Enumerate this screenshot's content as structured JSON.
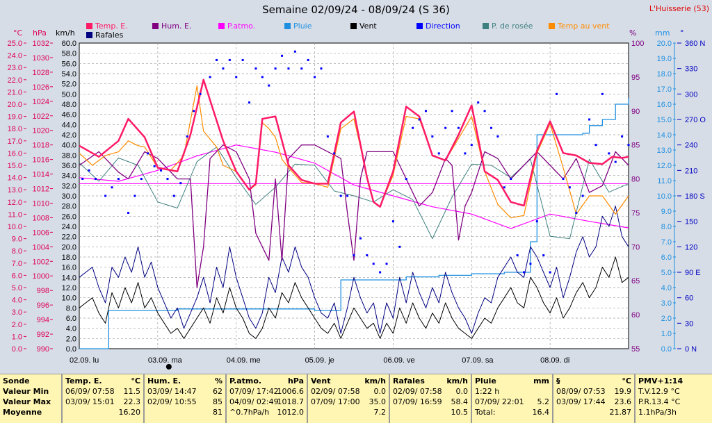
{
  "title": "Semaine 02/09/24 - 08/09/24 (S 36)",
  "station": "L'Huisserie (53)",
  "legend": [
    {
      "label": "Temp. E.",
      "color": "#ff1a66"
    },
    {
      "label": "Hum. E.",
      "color": "#800080"
    },
    {
      "label": "P.atmo.",
      "color": "#ff00ff"
    },
    {
      "label": "Pluie",
      "color": "#1e8fe0"
    },
    {
      "label": "Vent",
      "color": "#000000"
    },
    {
      "label": "Direction",
      "color": "#0000ff"
    },
    {
      "label": "P. de rosée",
      "color": "#3f7f7f"
    },
    {
      "label": "Temp au vent",
      "color": "#ff8c00"
    },
    {
      "label": "Rafales",
      "color": "#000080"
    }
  ],
  "axes": {
    "temp": {
      "unit": "°C",
      "min": 0,
      "max": 25,
      "step": 0.5,
      "color": "#e0005a"
    },
    "pressure": {
      "unit": "hPa",
      "min": 990,
      "max": 1032,
      "step": 2,
      "color": "#e0005a"
    },
    "wind": {
      "unit": "km/h",
      "min": 0,
      "max": 60,
      "step": 2,
      "color": "#000000"
    },
    "humidity": {
      "unit": "%",
      "min": 55,
      "max": 100,
      "step": 5,
      "color": "#800080"
    },
    "rain": {
      "unit": "mm",
      "min": 0,
      "max": 20,
      "step": 1,
      "color": "#1e8fe0"
    },
    "direction": {
      "unit": "°",
      "ticks": [
        "0 N",
        "30",
        "60",
        "90 E",
        "120",
        "150",
        "180 S",
        "210",
        "240",
        "270 O",
        "300",
        "330",
        "360 N"
      ],
      "color": "#0000c0"
    }
  },
  "days": [
    "02.09. lu",
    "03.09. ma",
    "04.09. me",
    "05.09. je",
    "06.09. ve",
    "07.09. sa",
    "08.09. di"
  ],
  "chart_data": {
    "type": "line",
    "x_unit": "hour of week (0 = 02/09 00:00)",
    "series": [
      {
        "name": "Temp. E.",
        "axis": "temp",
        "x": [
          0,
          6,
          12,
          15,
          20,
          24,
          30,
          34,
          38,
          44,
          48,
          52,
          54,
          56,
          60,
          64,
          68,
          72,
          76,
          80,
          84,
          88,
          90,
          92,
          96,
          100,
          104,
          108,
          112,
          116,
          120,
          124,
          128,
          132,
          136,
          140,
          144,
          148,
          152,
          156,
          160,
          163,
          166,
          168
        ],
        "y": [
          16.6,
          15.7,
          17.0,
          18.8,
          17.3,
          14.8,
          14.5,
          17.5,
          22.0,
          17.0,
          14.5,
          13.0,
          13.5,
          18.8,
          19.0,
          15.0,
          13.8,
          13.5,
          13.5,
          18.5,
          19.4,
          14.0,
          12.0,
          11.6,
          14.5,
          19.8,
          19.0,
          15.8,
          15.4,
          17.5,
          19.9,
          14.5,
          13.8,
          12.0,
          11.7,
          16.2,
          18.6,
          16.0,
          15.8,
          15.2,
          15.1,
          15.7,
          15.6,
          15.7
        ]
      },
      {
        "name": "Hum. E.",
        "axis": "humidity",
        "x": [
          0,
          6,
          12,
          15,
          20,
          24,
          30,
          34,
          36,
          38,
          40,
          44,
          48,
          52,
          54,
          56,
          58,
          60,
          62,
          64,
          68,
          72,
          76,
          80,
          82,
          84,
          86,
          88,
          92,
          96,
          100,
          104,
          108,
          112,
          114,
          116,
          118,
          120,
          124,
          128,
          132,
          136,
          140,
          144,
          148,
          152,
          156,
          160,
          164,
          168
        ],
        "y": [
          82,
          84,
          81,
          80,
          84,
          83,
          80,
          80,
          64,
          70,
          83,
          85,
          84,
          80,
          72,
          70,
          68,
          80,
          68,
          83,
          85,
          85,
          84,
          83,
          75,
          68,
          80,
          84,
          84,
          84,
          80,
          76,
          78,
          83,
          82,
          71,
          76,
          78,
          84,
          83,
          80,
          82,
          84,
          82,
          80,
          83,
          78,
          79,
          84,
          82
        ]
      },
      {
        "name": "P.atmo.",
        "axis": "pressure",
        "x": [
          0,
          12,
          24,
          36,
          48,
          60,
          72,
          84,
          96,
          108,
          120,
          132,
          144,
          156,
          168
        ],
        "y": [
          1013.5,
          1013.0,
          1014.5,
          1016.5,
          1018.0,
          1017.0,
          1015.5,
          1012.5,
          1011.0,
          1009.5,
          1008.5,
          1006.5,
          1008.5,
          1007.5,
          1006.6
        ]
      },
      {
        "name": "Pluie",
        "axis": "rain",
        "x": [
          0,
          7,
          9,
          30,
          60,
          72,
          79,
          80,
          100,
          110,
          120,
          130,
          136,
          138,
          140,
          144,
          148,
          154,
          156,
          160,
          164,
          168
        ],
        "y": [
          0,
          0,
          2.5,
          2.6,
          2.6,
          2.5,
          2.5,
          4.5,
          4.7,
          4.8,
          4.9,
          5.0,
          5.0,
          7.0,
          14.0,
          14.0,
          14.0,
          14.1,
          14.6,
          15.0,
          16.0,
          16.4
        ]
      },
      {
        "name": "Vent",
        "axis": "wind",
        "x": [
          0,
          4,
          6,
          8,
          10,
          12,
          14,
          16,
          18,
          20,
          22,
          24,
          26,
          28,
          30,
          32,
          34,
          36,
          38,
          40,
          42,
          44,
          46,
          48,
          50,
          52,
          54,
          56,
          58,
          60,
          62,
          64,
          66,
          68,
          70,
          72,
          74,
          76,
          78,
          80,
          82,
          84,
          86,
          88,
          90,
          92,
          94,
          96,
          98,
          100,
          102,
          104,
          106,
          108,
          110,
          112,
          114,
          116,
          118,
          120,
          122,
          124,
          126,
          128,
          130,
          132,
          134,
          136,
          138,
          140,
          142,
          144,
          146,
          148,
          150,
          152,
          154,
          156,
          158,
          160,
          162,
          164,
          166,
          168
        ],
        "y": [
          8,
          10,
          7,
          5,
          11,
          8,
          12,
          9,
          13,
          8,
          10,
          7,
          5,
          3,
          4,
          2,
          4,
          6,
          8,
          5,
          10,
          7,
          12,
          8,
          6,
          3,
          2,
          4,
          8,
          6,
          11,
          9,
          13,
          10,
          8,
          6,
          4,
          3,
          5,
          2,
          5,
          8,
          6,
          4,
          5,
          2,
          5,
          3,
          8,
          5,
          9,
          6,
          4,
          7,
          5,
          9,
          6,
          4,
          3,
          2,
          4,
          6,
          5,
          8,
          10,
          12,
          9,
          8,
          14,
          12,
          9,
          7,
          10,
          6,
          8,
          11,
          13,
          10,
          12,
          16,
          14,
          18,
          13,
          14
        ]
      },
      {
        "name": "Rafales",
        "axis": "wind",
        "x": [
          0,
          4,
          6,
          8,
          10,
          12,
          14,
          16,
          18,
          20,
          22,
          24,
          26,
          28,
          30,
          32,
          34,
          36,
          38,
          40,
          42,
          44,
          46,
          48,
          50,
          52,
          54,
          56,
          58,
          60,
          62,
          64,
          66,
          68,
          70,
          72,
          74,
          76,
          78,
          80,
          82,
          84,
          86,
          88,
          90,
          92,
          94,
          96,
          98,
          100,
          102,
          104,
          106,
          108,
          110,
          112,
          114,
          116,
          118,
          120,
          122,
          124,
          126,
          128,
          130,
          132,
          134,
          136,
          138,
          140,
          142,
          144,
          146,
          148,
          150,
          152,
          154,
          156,
          158,
          160,
          162,
          164,
          166,
          168
        ],
        "y": [
          14,
          16,
          12,
          9,
          16,
          14,
          18,
          15,
          20,
          14,
          17,
          12,
          9,
          6,
          8,
          4,
          7,
          10,
          14,
          9,
          16,
          12,
          20,
          14,
          10,
          6,
          4,
          7,
          14,
          11,
          18,
          15,
          20,
          16,
          14,
          10,
          7,
          6,
          9,
          3,
          8,
          14,
          10,
          7,
          9,
          3,
          9,
          6,
          14,
          9,
          15,
          11,
          8,
          12,
          9,
          15,
          11,
          8,
          6,
          3,
          7,
          10,
          9,
          14,
          16,
          18,
          15,
          14,
          20,
          18,
          15,
          12,
          16,
          10,
          14,
          19,
          22,
          18,
          20,
          26,
          24,
          28,
          22,
          20
        ]
      },
      {
        "name": "P. de rosée",
        "axis": "temp",
        "x": [
          0,
          6,
          12,
          18,
          24,
          30,
          36,
          42,
          48,
          54,
          60,
          66,
          72,
          78,
          84,
          90,
          96,
          102,
          108,
          114,
          120,
          126,
          132,
          138,
          144,
          150,
          156,
          162,
          168
        ],
        "y": [
          15.2,
          13.7,
          15.6,
          15.0,
          12.0,
          11.5,
          15.3,
          16.5,
          14.0,
          11.8,
          13.2,
          15.1,
          15.0,
          12.9,
          12.5,
          12.0,
          13.0,
          12.2,
          9.0,
          12.4,
          15.1,
          15.0,
          14.0,
          15.5,
          9.2,
          9.0,
          15.5,
          12.8,
          13.5
        ]
      },
      {
        "name": "Temp au vent",
        "axis": "temp",
        "x": [
          0,
          4,
          8,
          12,
          15,
          18,
          20,
          24,
          28,
          32,
          36,
          38,
          42,
          44,
          48,
          52,
          54,
          56,
          58,
          60,
          62,
          64,
          68,
          72,
          76,
          80,
          84,
          86,
          88,
          90,
          92,
          96,
          100,
          104,
          108,
          112,
          116,
          120,
          124,
          128,
          132,
          136,
          140,
          144,
          148,
          152,
          156,
          160,
          164,
          168
        ],
        "y": [
          16.0,
          15.0,
          15.8,
          16.1,
          17.0,
          16.6,
          16.5,
          14.8,
          14.6,
          15.8,
          21.5,
          17.8,
          16.5,
          15.0,
          14.5,
          13.0,
          13.4,
          18.5,
          18.0,
          17.3,
          15.5,
          14.8,
          13.6,
          13.5,
          13.2,
          18.0,
          18.8,
          16.5,
          14.0,
          12.0,
          11.6,
          14.2,
          19.0,
          18.8,
          15.8,
          15.4,
          17.2,
          19.0,
          14.5,
          11.8,
          10.7,
          10.9,
          16.0,
          18.4,
          14.8,
          11.0,
          12.5,
          12.5,
          11.0,
          12.5
        ]
      },
      {
        "name": "Direction",
        "axis": "direction",
        "x": [
          1,
          3,
          5,
          8,
          10,
          12,
          15,
          17,
          19,
          21,
          23,
          25,
          27,
          29,
          31,
          33,
          35,
          37,
          40,
          42,
          44,
          46,
          48,
          50,
          52,
          54,
          56,
          58,
          60,
          62,
          64,
          66,
          68,
          70,
          72,
          74,
          76,
          78,
          80,
          82,
          84,
          86,
          88,
          90,
          92,
          94,
          96,
          98,
          100,
          102,
          104,
          106,
          108,
          110,
          112,
          114,
          116,
          118,
          120,
          122,
          124,
          126,
          128,
          130,
          132,
          134,
          136,
          138,
          140,
          142,
          144,
          146,
          148,
          150,
          152,
          154,
          156,
          158,
          160,
          162,
          164,
          166,
          168
        ],
        "y": [
          200,
          210,
          200,
          180,
          190,
          200,
          160,
          180,
          200,
          230,
          215,
          210,
          200,
          180,
          195,
          250,
          280,
          300,
          320,
          340,
          330,
          340,
          320,
          340,
          290,
          330,
          320,
          310,
          330,
          345,
          330,
          350,
          330,
          340,
          320,
          330,
          250,
          230,
          180,
          180,
          110,
          130,
          110,
          100,
          90,
          100,
          150,
          120,
          200,
          260,
          270,
          280,
          250,
          230,
          260,
          280,
          260,
          230,
          240,
          290,
          280,
          260,
          250,
          190,
          200,
          110,
          90,
          100,
          150,
          110,
          90,
          300,
          200,
          190,
          160,
          180,
          270,
          240,
          300,
          230,
          220,
          250,
          240
        ]
      }
    ]
  },
  "table": {
    "sonde": {
      "header": "Sonde",
      "rows": [
        "Valeur Min",
        "Valeur Max",
        "Moyenne"
      ]
    },
    "columns": [
      {
        "name": "Temp. E.",
        "unit": "°C",
        "rows": [
          [
            "06/09/ 07:58",
            "11.5"
          ],
          [
            "03/09/ 15:01",
            "22.3"
          ],
          [
            "",
            "16.20"
          ]
        ]
      },
      {
        "name": "Hum. E.",
        "unit": "%",
        "rows": [
          [
            "03/09/ 14:47",
            "62"
          ],
          [
            "02/09/ 10:55",
            "85"
          ],
          [
            "",
            "81"
          ]
        ]
      },
      {
        "name": "P.atmo.",
        "unit": "hPa",
        "rows": [
          [
            "07/09/ 17:42",
            "1006.6"
          ],
          [
            "04/09/ 02:49",
            "1018.7"
          ],
          [
            "^0.7hPa/h",
            "1012.0"
          ]
        ]
      },
      {
        "name": "Vent",
        "unit": "km/h",
        "rows": [
          [
            "02/09/ 07:58",
            "0.0"
          ],
          [
            "07/09/ 17:00",
            "35.0"
          ],
          [
            "",
            "7.2"
          ]
        ]
      },
      {
        "name": "Rafales",
        "unit": "km/h",
        "rows": [
          [
            "02/09/ 07:58",
            "0.0"
          ],
          [
            "07/09/ 16:59",
            "58.4"
          ],
          [
            "",
            "10.5"
          ]
        ]
      },
      {
        "name": "Pluie",
        "unit": "mm",
        "rows": [
          [
            "1:22 h",
            ""
          ],
          [
            "07/09/ 22:01",
            "5.2"
          ],
          [
            "Total:",
            "16.4"
          ]
        ]
      },
      {
        "name": "§",
        "unit": "°C",
        "rows": [
          [
            "08/09/ 07:53",
            "19.9"
          ],
          [
            "03/09/ 17:44",
            "23.6"
          ],
          [
            "",
            "21.87"
          ]
        ]
      },
      {
        "name": "PMV+1:14",
        "unit": "",
        "rows": [
          [
            "T.V.12.9 °C",
            ""
          ],
          [
            "P.R.13.4 °C",
            ""
          ],
          [
            "1.1hPa/3h",
            ""
          ]
        ]
      }
    ]
  }
}
